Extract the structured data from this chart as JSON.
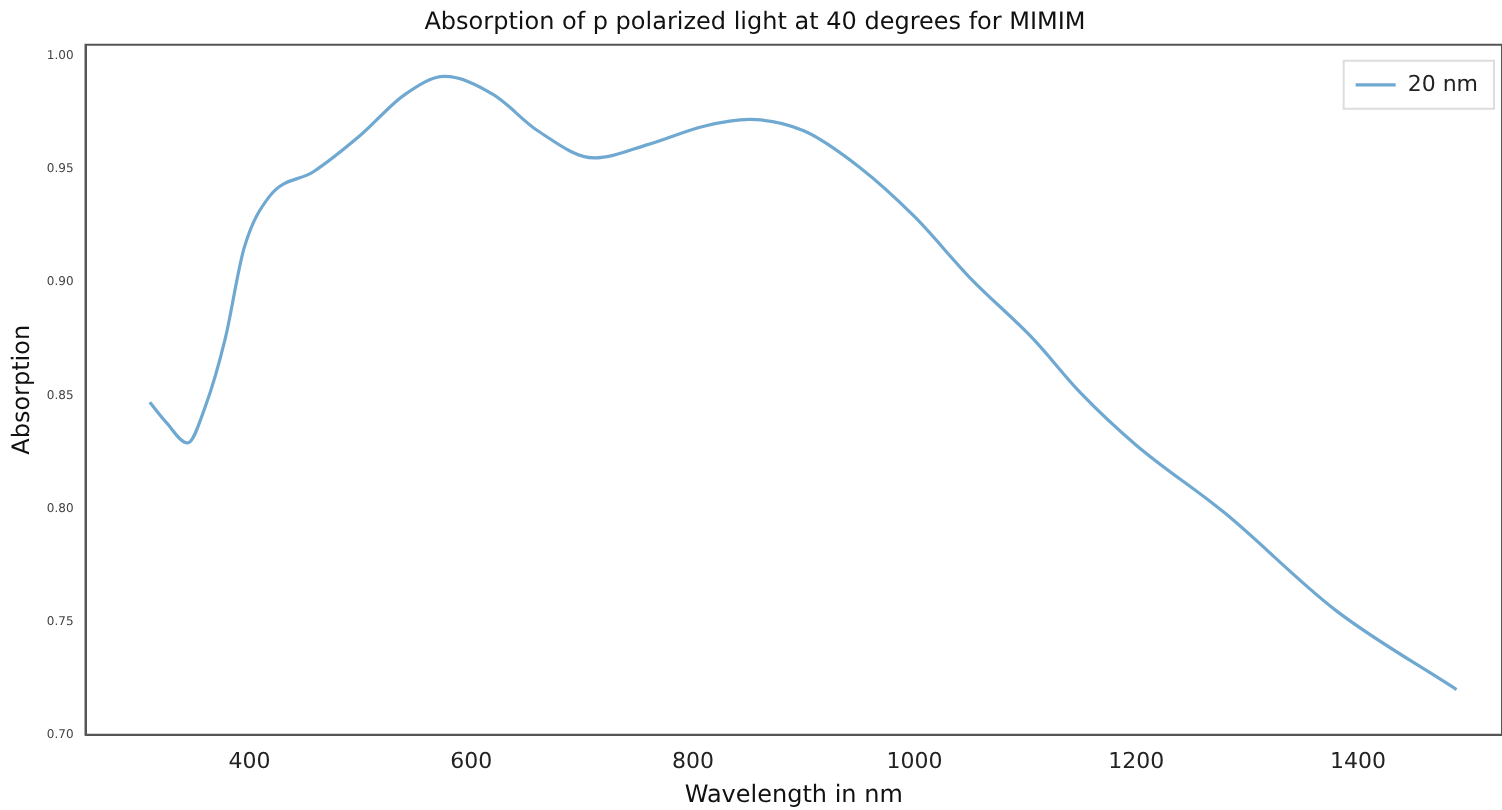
{
  "chart_data": {
    "type": "line",
    "title": "Absorption of p polarized light at 40 degrees for MIMIM",
    "xlabel": "Wavelength in nm",
    "ylabel": "Absorption",
    "x": [
      310,
      325,
      344,
      360,
      378,
      395,
      418,
      458,
      500,
      540,
      576,
      620,
      660,
      711,
      760,
      810,
      851,
      900,
      950,
      1000,
      1050,
      1107,
      1150,
      1200,
      1280,
      1380,
      1489
    ],
    "series": [
      {
        "name": "20 nm",
        "color": "#6fa8d0",
        "values": [
          0.847,
          0.838,
          0.829,
          0.845,
          0.875,
          0.915,
          0.938,
          0.949,
          0.965,
          0.983,
          0.991,
          0.983,
          0.967,
          0.955,
          0.961,
          0.969,
          0.972,
          0.967,
          0.951,
          0.929,
          0.902,
          0.875,
          0.851,
          0.828,
          0.798,
          0.755,
          0.72
        ]
      }
    ],
    "xlim": [
      252,
      1530
    ],
    "xticks": [
      400,
      600,
      800,
      1000,
      1200,
      1400
    ],
    "ylim": [
      0.7,
      1.005
    ],
    "yticks": [
      {
        "value": 0.7,
        "label": "0.70"
      },
      {
        "value": 0.75,
        "label": "0.75"
      },
      {
        "value": 0.8,
        "label": "0.80"
      },
      {
        "value": 0.85,
        "label": "0.85"
      },
      {
        "value": 0.9,
        "label": "0.90"
      },
      {
        "value": 0.95,
        "label": "0.95"
      },
      {
        "value": 1.0,
        "label": "1.00"
      }
    ],
    "grid": false,
    "legend": "top right",
    "marker": "none",
    "line_style": "solid"
  }
}
